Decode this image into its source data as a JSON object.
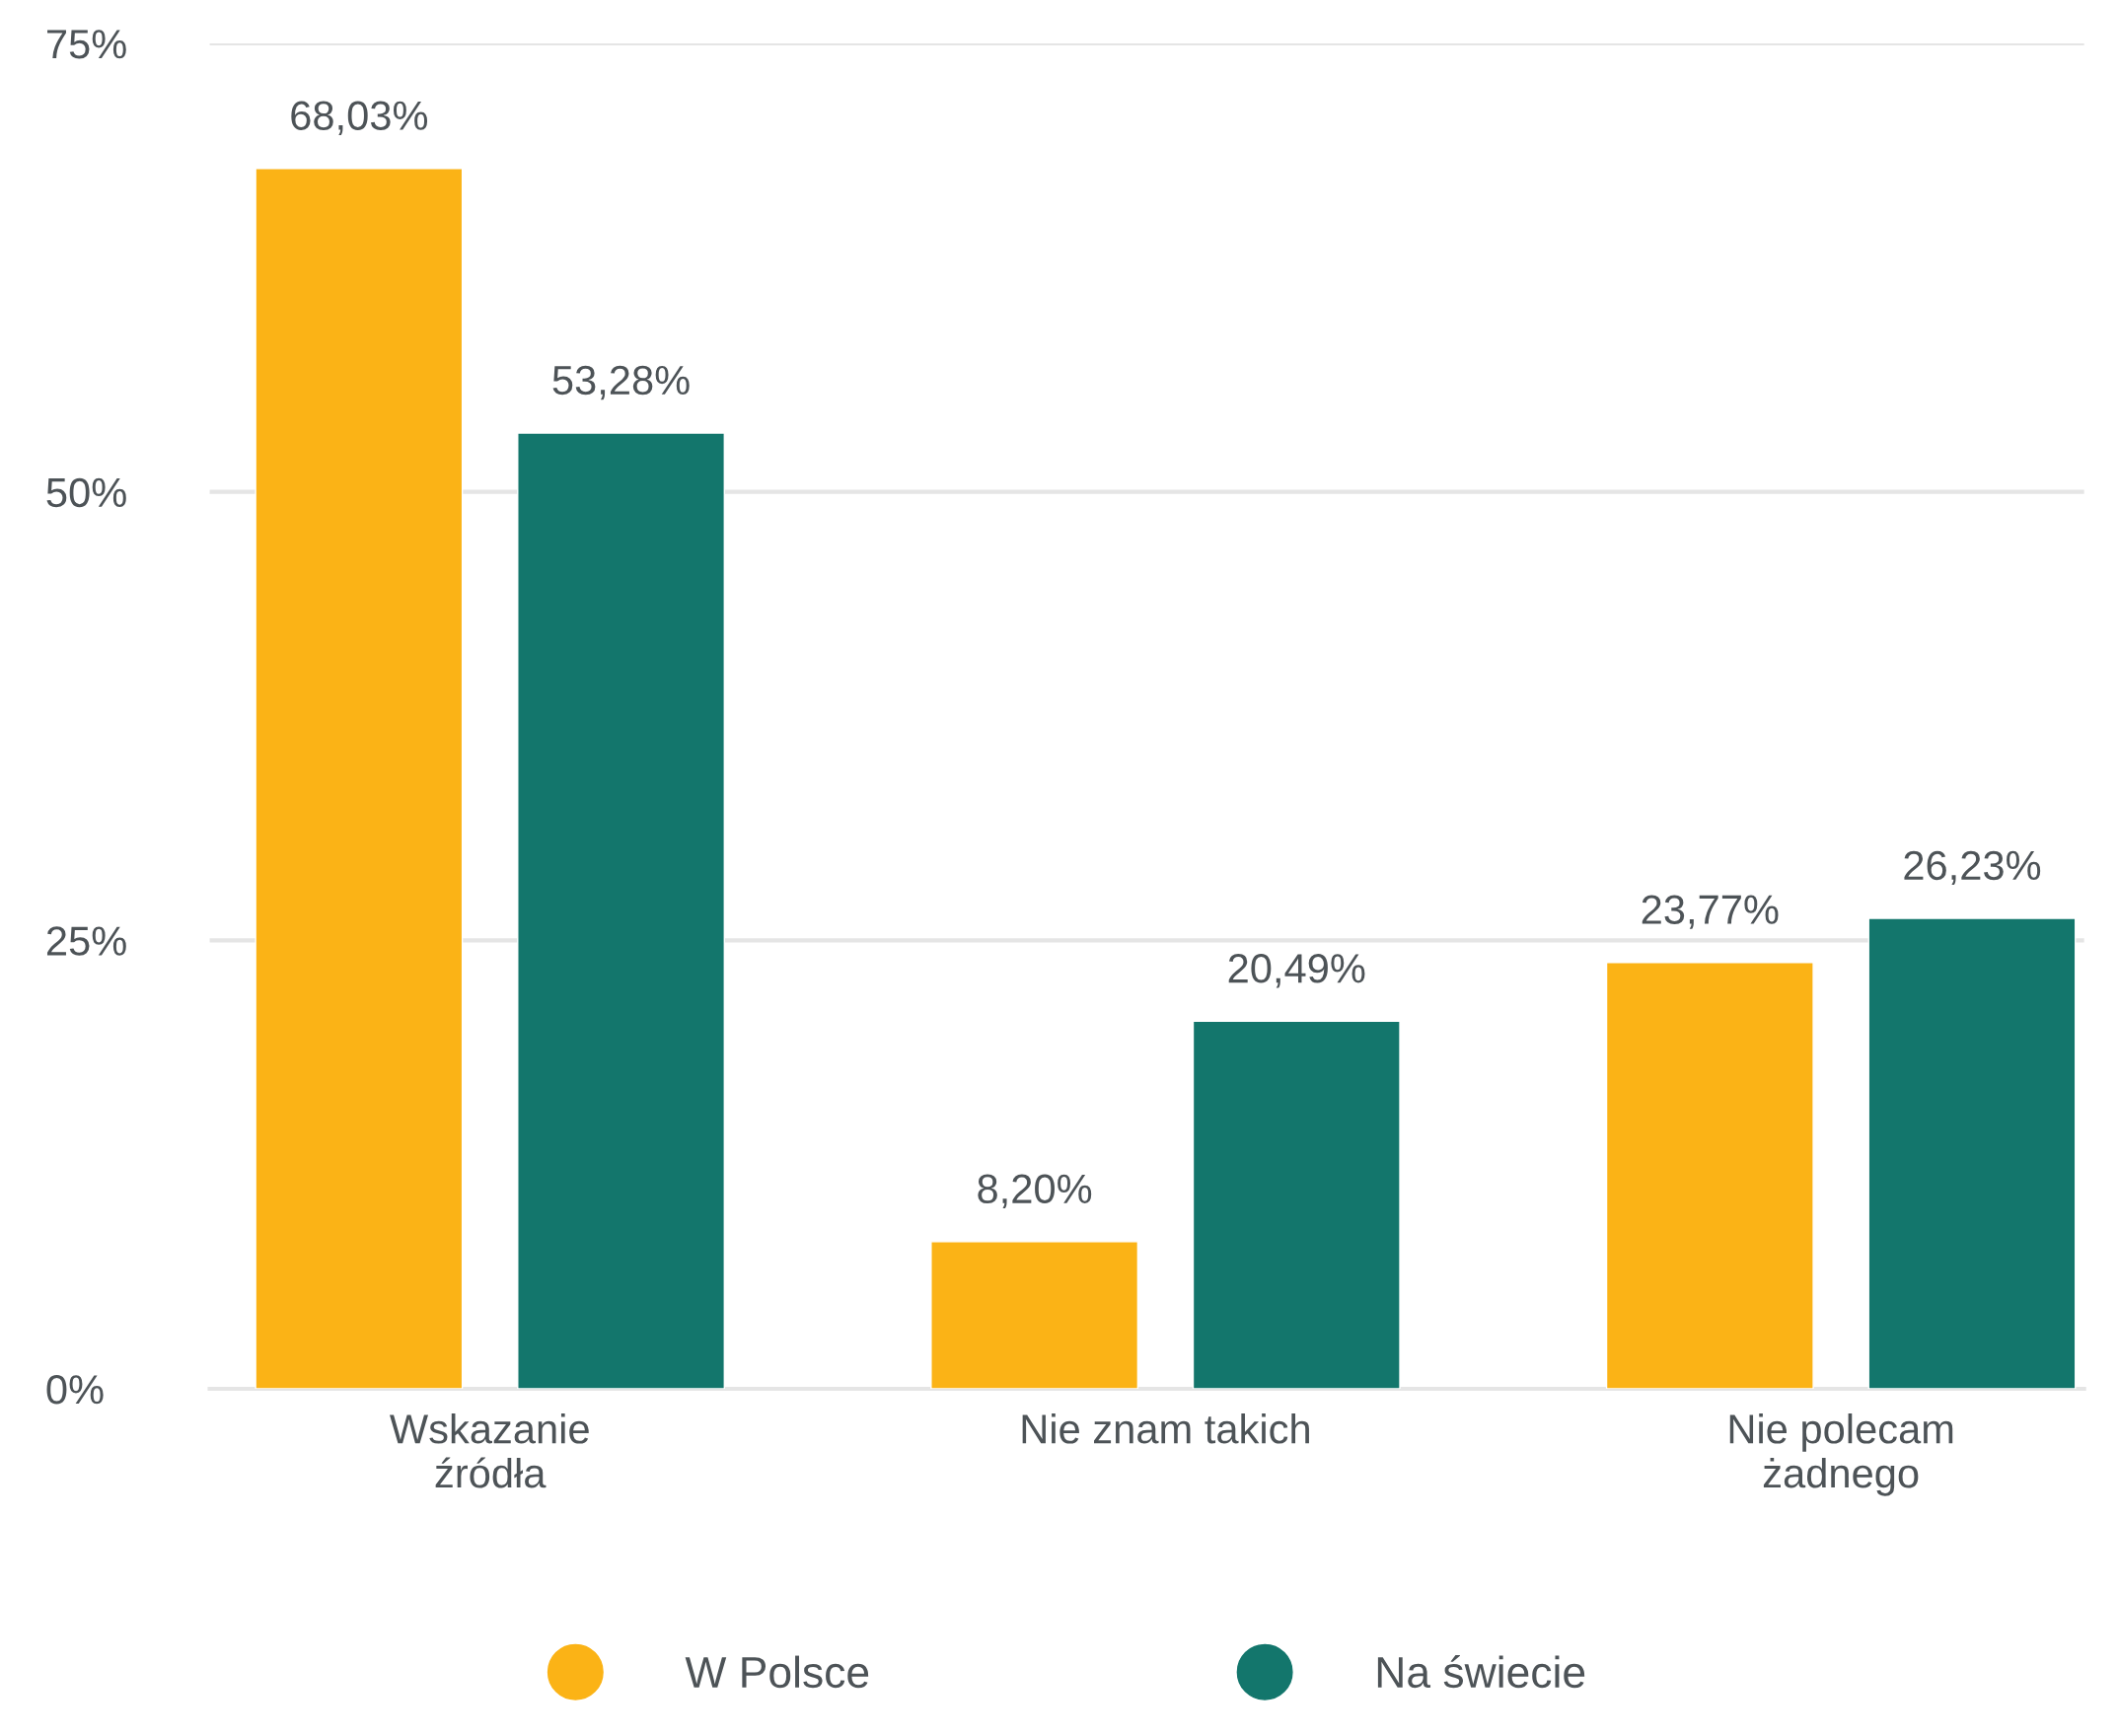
{
  "chart_data": {
    "type": "bar",
    "categories": [
      "Wskazanie\nźródła",
      "Nie znam takich",
      "Nie polecam\nżadnego"
    ],
    "series": [
      {
        "name": "W Polsce",
        "color": "#fbb316",
        "values": [
          68.03,
          8.2,
          23.77
        ],
        "value_labels": [
          "68,03%",
          "8,20%",
          "23,77%"
        ]
      },
      {
        "name": "Na świecie",
        "color": "#13766c",
        "values": [
          53.28,
          20.49,
          26.23
        ],
        "value_labels": [
          "53,28%",
          "20,49%",
          "26,23%"
        ]
      }
    ],
    "ylim": [
      0,
      75
    ],
    "yticks": [
      {
        "value": 0,
        "label": "0%"
      },
      {
        "value": 25,
        "label": "25%"
      },
      {
        "value": 50,
        "label": "50%"
      },
      {
        "value": 75,
        "label": "75%"
      }
    ],
    "grid": "y",
    "legend": "bottom"
  }
}
